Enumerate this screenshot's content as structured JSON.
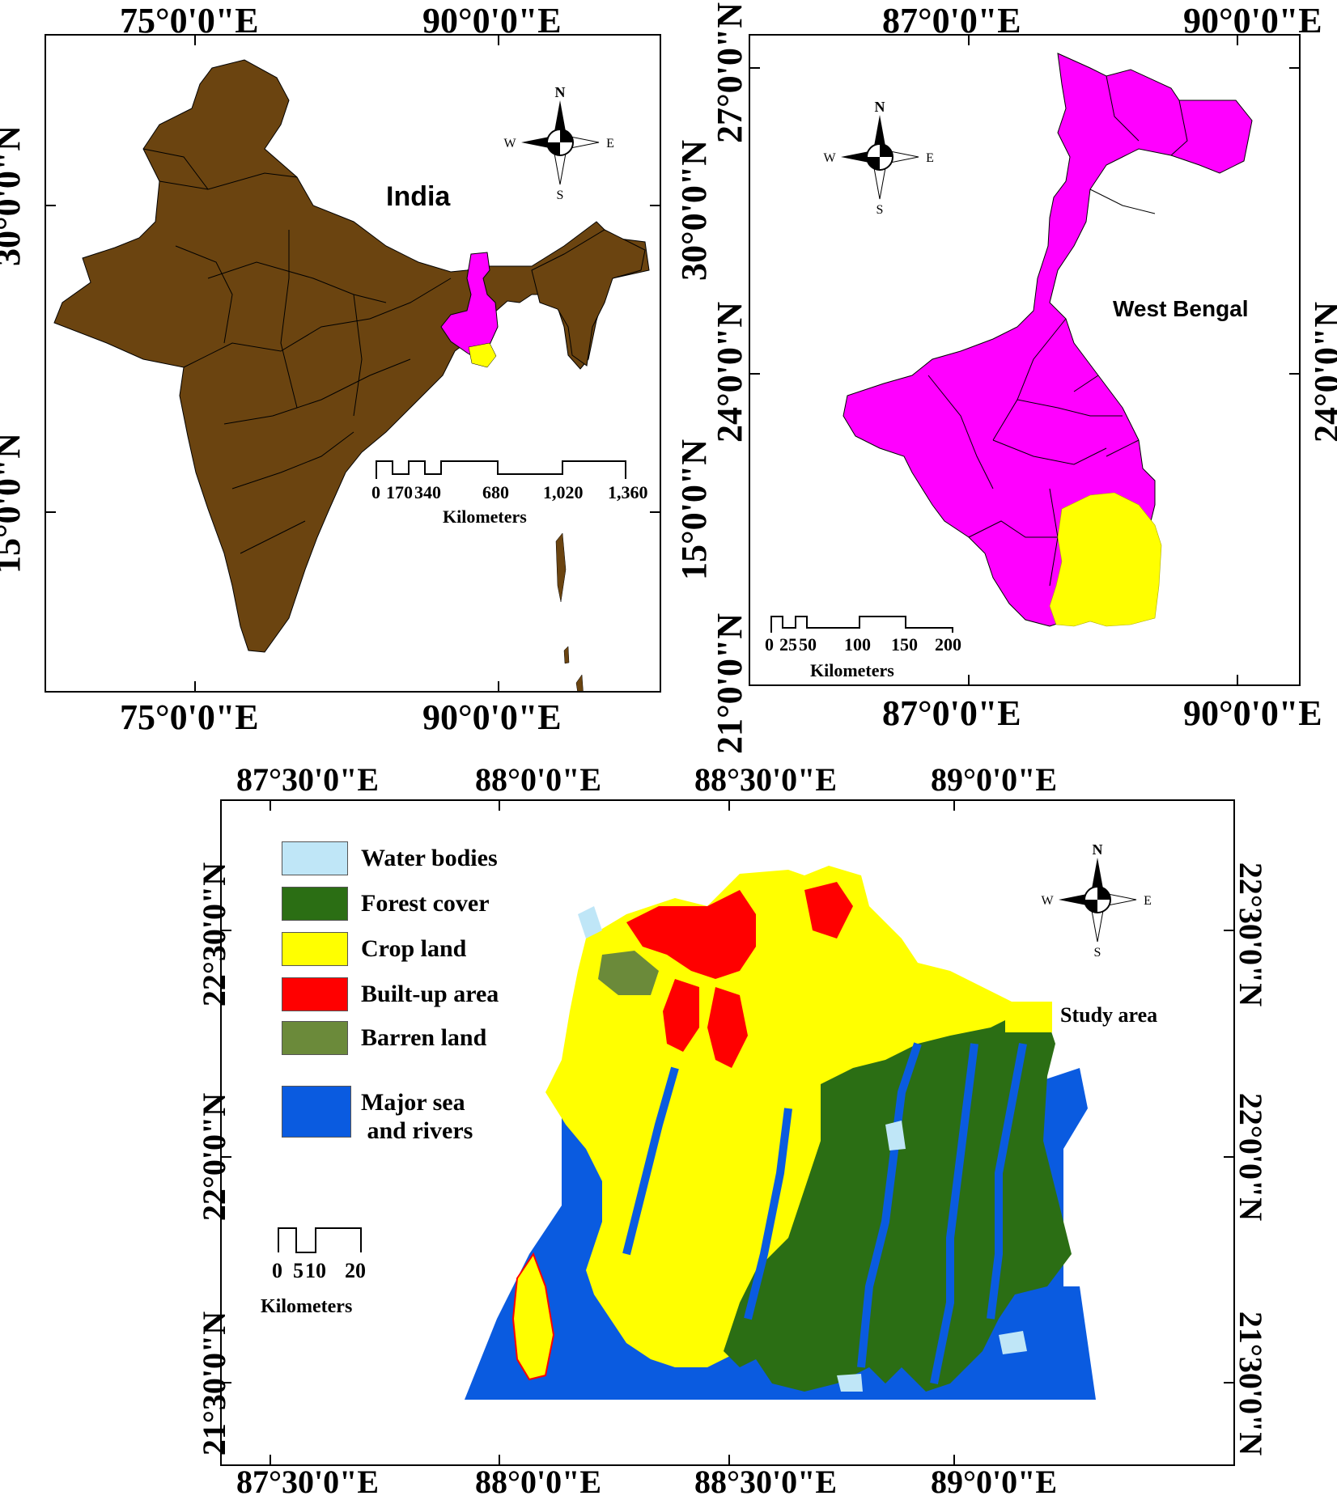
{
  "panel_india": {
    "title": "India",
    "top_ticks": [
      "75°0'0\"E",
      "90°0'0\"E"
    ],
    "bottom_ticks": [
      "75°0'0\"E",
      "90°0'0\"E"
    ],
    "left_ticks": [
      "30°0'0\"N",
      "15°0'0\"N"
    ],
    "scale": {
      "labels": [
        "0",
        "170",
        "340",
        "680",
        "1,020",
        "1,360"
      ],
      "unit": "Kilometers"
    }
  },
  "panel_wb": {
    "title": "West Bengal",
    "top_ticks": [
      "87°0'0\"E",
      "90°0'0\"E"
    ],
    "bottom_ticks": [
      "87°0'0\"E",
      "90°0'0\"E"
    ],
    "left_ticks": [
      "27°0'0\"N",
      "24°0'0\"N",
      "21°0'0\"N"
    ],
    "shared_ticks": [
      "30°0'0\"N",
      "15°0'0\"N"
    ],
    "right_ticks": [
      "24°0'0\"N"
    ],
    "scale": {
      "labels": [
        "0",
        "25",
        "50",
        "100",
        "150",
        "200"
      ],
      "unit": "Kilometers"
    }
  },
  "panel_study": {
    "top_ticks": [
      "87°30'0\"E",
      "88°0'0\"E",
      "88°30'0\"E",
      "89°0'0\"E"
    ],
    "bottom_ticks": [
      "87°30'0\"E",
      "88°0'0\"E",
      "88°30'0\"E",
      "89°0'0\"E"
    ],
    "left_ticks": [
      "22°30'0\"N",
      "22°0'0\"N",
      "21°30'0\"N"
    ],
    "right_ticks": [
      "22°30'0\"N",
      "22°0'0\"N",
      "21°30'0\"N"
    ],
    "legend": [
      {
        "label": "Water bodies",
        "color": "#bfe6f7"
      },
      {
        "label": "Forest cover",
        "color": "#2b6e14"
      },
      {
        "label": "Crop land",
        "color": "#ffff00"
      },
      {
        "label": "Built-up area",
        "color": "#ff0000"
      },
      {
        "label": "Barren land",
        "color": "#6b8a3a"
      },
      {
        "label": "Major sea\n and rivers",
        "color": "#0a5be0"
      }
    ],
    "study_area_label": "Study area",
    "study_area_color": "#ffff00",
    "scale": {
      "labels": [
        "0",
        "5",
        "10",
        "20"
      ],
      "unit": "Kilometers"
    }
  },
  "compass": {
    "n": "N",
    "s": "S",
    "e": "E",
    "w": "W"
  },
  "colors": {
    "india": "#6b4410",
    "west_bengal": "#ff00ff",
    "study": "#ffff00",
    "sea": "#0a5be0",
    "forest": "#2b6e14",
    "builtup": "#ff0000"
  }
}
